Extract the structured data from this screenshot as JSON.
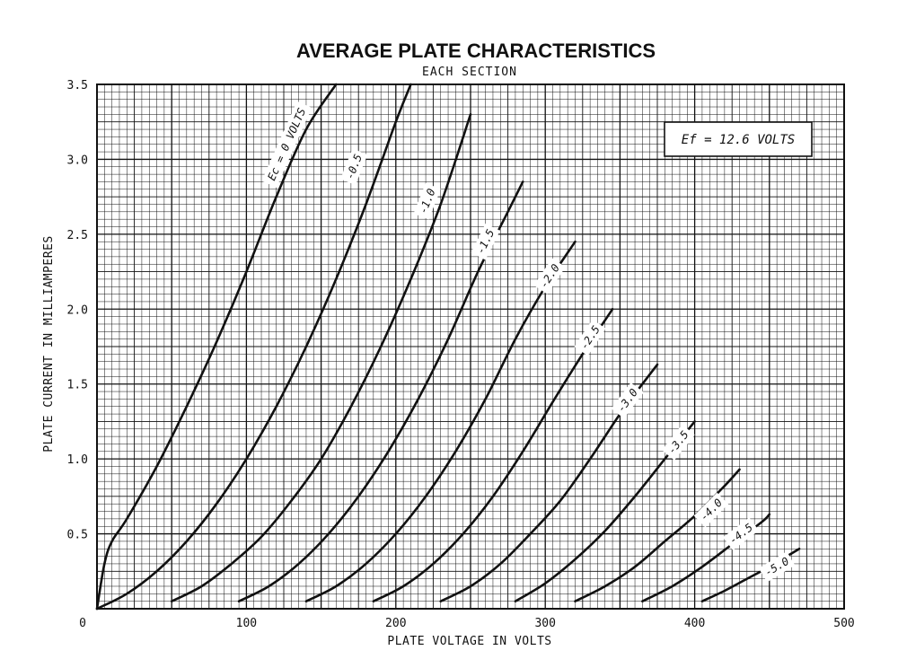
{
  "chart_data": {
    "type": "line",
    "title": "AVERAGE PLATE CHARACTERISTICS",
    "subtitle": "EACH SECTION",
    "xlabel": "PLATE VOLTAGE IN VOLTS",
    "ylabel": "PLATE CURRENT IN MILLIAMPERES",
    "xlim": [
      0,
      500
    ],
    "ylim": [
      0,
      3.5
    ],
    "x_ticks": [
      "0",
      "100",
      "200",
      "300",
      "400",
      "500"
    ],
    "y_ticks": [
      "0.5",
      "1.0",
      "1.5",
      "2.0",
      "2.5",
      "3.0",
      "3.5"
    ],
    "grid": true,
    "annotation": "Ef = 12.6 VOLTS",
    "series": [
      {
        "name": "Ec = 0 VOLTS",
        "x": [
          0,
          5,
          10,
          20,
          40,
          60,
          80,
          100,
          120,
          140,
          160
        ],
        "y": [
          0,
          0.3,
          0.45,
          0.6,
          0.95,
          1.35,
          1.78,
          2.25,
          2.75,
          3.2,
          3.5
        ]
      },
      {
        "name": "-0.5",
        "x": [
          0,
          20,
          40,
          60,
          80,
          100,
          120,
          140,
          160,
          180,
          200,
          210
        ],
        "y": [
          0,
          0.1,
          0.25,
          0.45,
          0.7,
          1.0,
          1.35,
          1.75,
          2.2,
          2.7,
          3.25,
          3.5
        ]
      },
      {
        "name": "-1.0",
        "x": [
          50,
          70,
          90,
          110,
          130,
          150,
          170,
          190,
          210,
          230,
          250
        ],
        "y": [
          0.05,
          0.15,
          0.3,
          0.48,
          0.72,
          1.0,
          1.35,
          1.75,
          2.2,
          2.7,
          3.3
        ]
      },
      {
        "name": "-1.5",
        "x": [
          95,
          115,
          135,
          155,
          175,
          195,
          215,
          235,
          255,
          275,
          285
        ],
        "y": [
          0.05,
          0.15,
          0.3,
          0.5,
          0.75,
          1.05,
          1.4,
          1.8,
          2.25,
          2.65,
          2.85
        ]
      },
      {
        "name": "-2.0",
        "x": [
          140,
          160,
          180,
          200,
          220,
          240,
          260,
          280,
          300,
          320
        ],
        "y": [
          0.05,
          0.15,
          0.3,
          0.5,
          0.75,
          1.05,
          1.4,
          1.8,
          2.15,
          2.45
        ]
      },
      {
        "name": "-2.5",
        "x": [
          185,
          205,
          225,
          245,
          265,
          285,
          305,
          325,
          345
        ],
        "y": [
          0.05,
          0.15,
          0.3,
          0.5,
          0.75,
          1.05,
          1.38,
          1.7,
          2.0
        ]
      },
      {
        "name": "-3.0",
        "x": [
          230,
          250,
          270,
          290,
          310,
          330,
          350,
          365,
          375
        ],
        "y": [
          0.05,
          0.15,
          0.3,
          0.5,
          0.72,
          1.0,
          1.3,
          1.5,
          1.63
        ]
      },
      {
        "name": "-3.5",
        "x": [
          280,
          300,
          320,
          340,
          360,
          380,
          400
        ],
        "y": [
          0.05,
          0.17,
          0.33,
          0.52,
          0.75,
          1.0,
          1.25
        ]
      },
      {
        "name": "-4.0",
        "x": [
          320,
          340,
          360,
          380,
          400,
          420,
          430
        ],
        "y": [
          0.05,
          0.15,
          0.28,
          0.45,
          0.62,
          0.82,
          0.93
        ]
      },
      {
        "name": "-4.5",
        "x": [
          365,
          385,
          405,
          425,
          445,
          450
        ],
        "y": [
          0.05,
          0.15,
          0.28,
          0.43,
          0.58,
          0.63
        ]
      },
      {
        "name": "-5.0",
        "x": [
          405,
          420,
          435,
          450,
          465,
          470
        ],
        "y": [
          0.05,
          0.12,
          0.2,
          0.28,
          0.37,
          0.4
        ]
      }
    ],
    "curve_labels": [
      {
        "text": "Ec = 0 VOLTS",
        "at_x": 127,
        "at_y": 3.1
      },
      {
        "text": "-0.5",
        "at_x": 172,
        "at_y": 2.95
      },
      {
        "text": "-1.0",
        "at_x": 221,
        "at_y": 2.72
      },
      {
        "text": "-1.5",
        "at_x": 260,
        "at_y": 2.45
      },
      {
        "text": "-2.0",
        "at_x": 303,
        "at_y": 2.22
      },
      {
        "text": "-2.5",
        "at_x": 330,
        "at_y": 1.81
      },
      {
        "text": "-3.0",
        "at_x": 355,
        "at_y": 1.39
      },
      {
        "text": "-3.5",
        "at_x": 389,
        "at_y": 1.11
      },
      {
        "text": "-4.0",
        "at_x": 411,
        "at_y": 0.66
      },
      {
        "text": "-4.5",
        "at_x": 431,
        "at_y": 0.5
      },
      {
        "text": "-5.0",
        "at_x": 455,
        "at_y": 0.28
      }
    ]
  }
}
